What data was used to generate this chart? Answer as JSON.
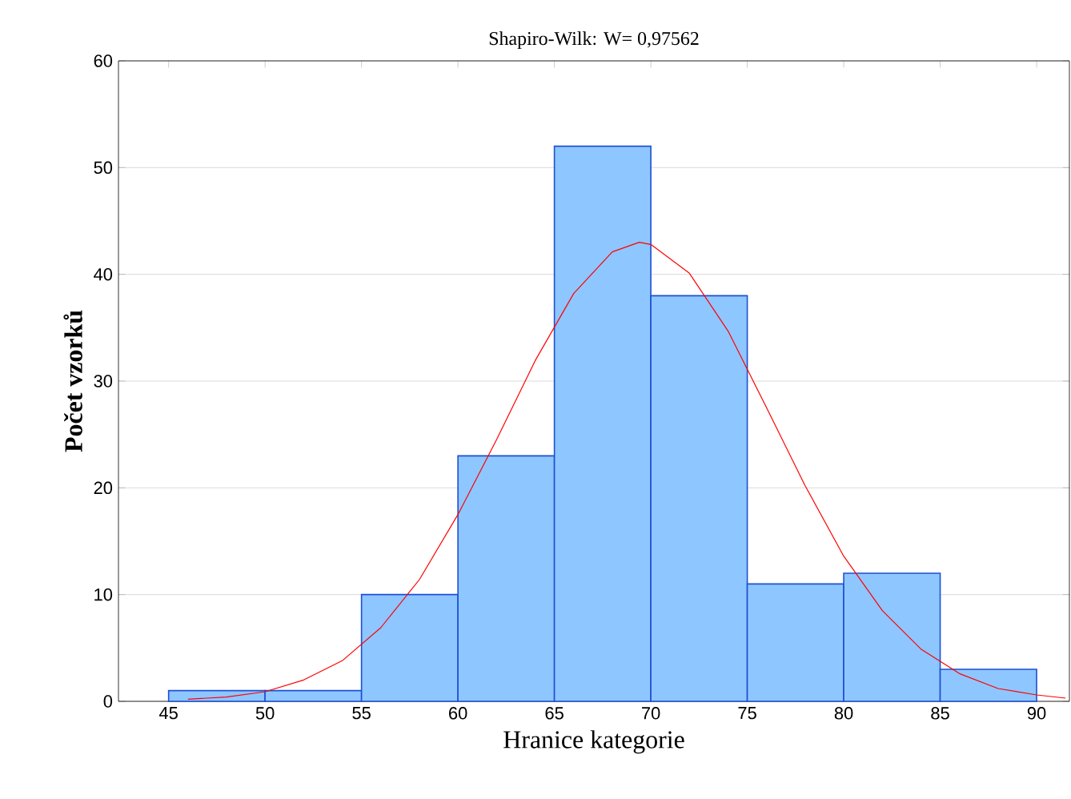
{
  "chart_data": {
    "type": "histogram",
    "title": "Shapiro-Wilk:  W= 0,97562",
    "xlabel": "Hranice kategorie",
    "ylabel": "Počet vzorků",
    "bins": [
      45,
      50,
      55,
      60,
      65,
      70,
      75,
      80,
      85,
      90
    ],
    "values": [
      1,
      1,
      10,
      23,
      52,
      38,
      11,
      12,
      3
    ],
    "color": "#8ec6ff",
    "series": [
      {
        "type": "line",
        "color": "#ff0000",
        "x": [
          46,
          48,
          50,
          52,
          54,
          56,
          58,
          60,
          62,
          64,
          66,
          68,
          69.4,
          70,
          72,
          74,
          76,
          78,
          80,
          82,
          84,
          86,
          88,
          90,
          91.5
        ],
        "values": [
          0.2,
          0.4,
          0.9,
          2,
          3.8,
          6.9,
          11.4,
          17.5,
          24.5,
          31.9,
          38.2,
          42.1,
          43,
          42.8,
          40.1,
          34.7,
          27.5,
          20.2,
          13.6,
          8.5,
          4.9,
          2.6,
          1.2,
          0.6,
          0.3
        ]
      }
    ],
    "xlim": [
      42.4,
      91.7
    ],
    "ylim": [
      0,
      60
    ],
    "xticks": [
      45,
      50,
      55,
      60,
      65,
      70,
      75,
      80,
      85,
      90
    ],
    "yticks": [
      0,
      10,
      20,
      30,
      40,
      50,
      60
    ],
    "grid": "y",
    "marker": "none"
  }
}
